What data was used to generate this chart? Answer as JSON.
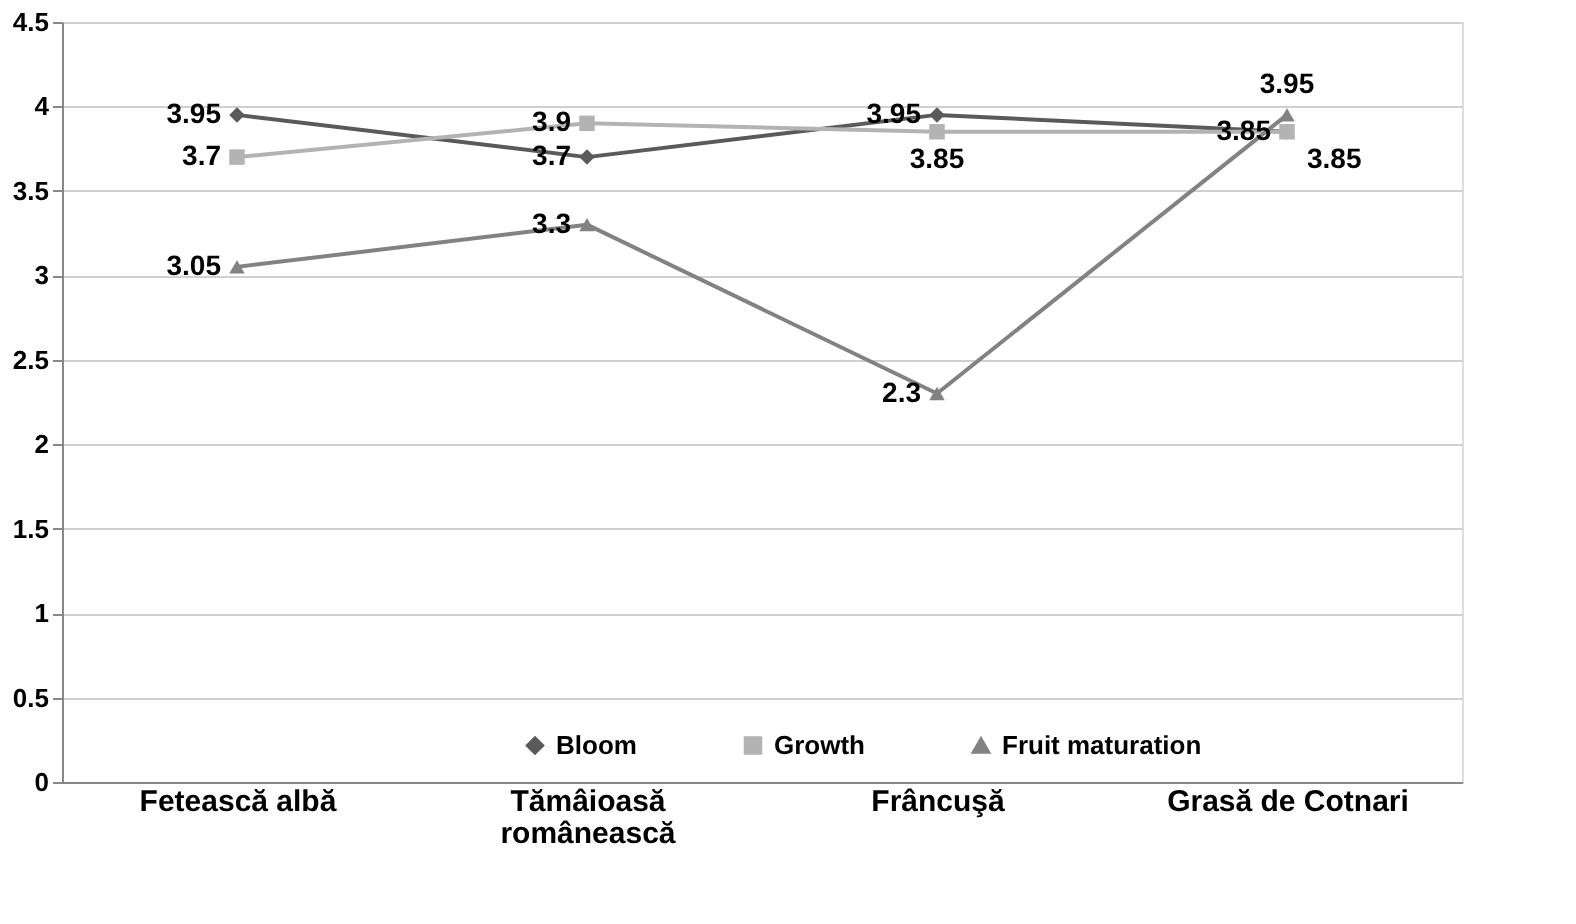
{
  "chart_data": {
    "type": "line",
    "categories": [
      "Fetească albă",
      "Tămâioasă românească",
      "Frâncuşă",
      "Grasă de Cotnari"
    ],
    "series": [
      {
        "name": "Bloom",
        "color": "#5a5a5a",
        "marker": "diamond",
        "values": [
          3.95,
          3.7,
          3.95,
          3.85
        ]
      },
      {
        "name": "Growth",
        "color": "#b3b3b3",
        "marker": "square",
        "values": [
          3.7,
          3.9,
          3.85,
          3.85
        ]
      },
      {
        "name": "Fruit maturation",
        "color": "#828282",
        "marker": "triangle",
        "values": [
          3.05,
          3.3,
          2.3,
          3.95
        ]
      }
    ],
    "ylim": [
      0,
      4.5
    ],
    "yticks": [
      0,
      0.5,
      1,
      1.5,
      2,
      2.5,
      3,
      3.5,
      4,
      4.5
    ],
    "grid": "y",
    "legend": "bottom",
    "data_labels": true,
    "line_style": "solid"
  }
}
